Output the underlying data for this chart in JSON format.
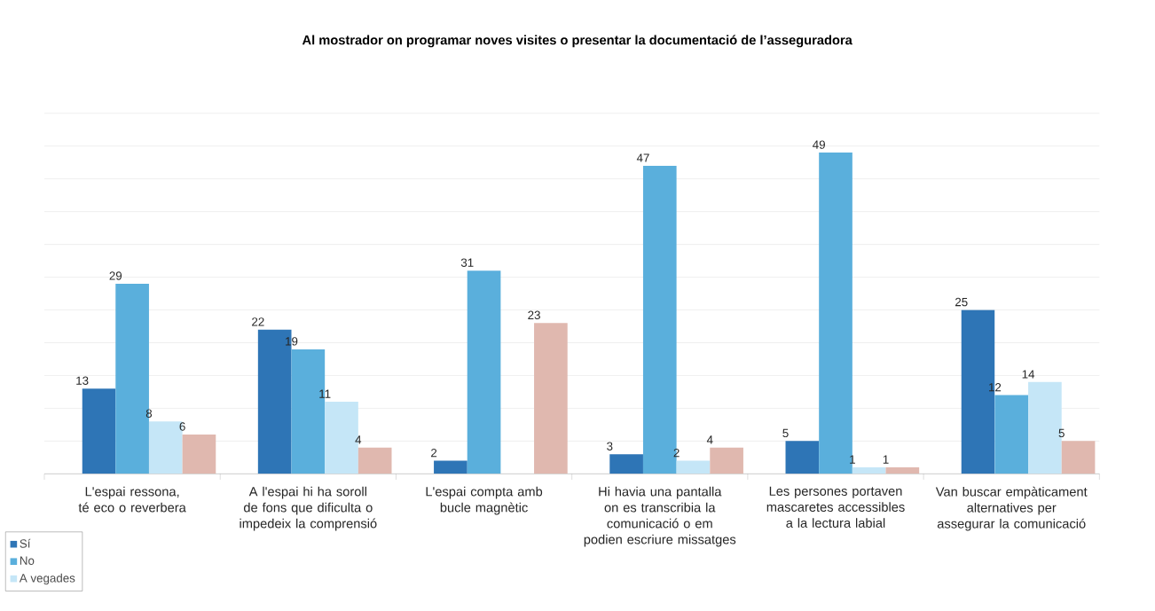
{
  "chart_data": {
    "type": "bar",
    "title": "Al mostrador on programar noves visites o presentar la documentació de l’asseguradora",
    "categories": [
      "L'espai ressona, té eco o reverbera",
      "A l'espai hi ha soroll de fons que dificulta o impedeix la comprensió",
      "L'espai compta amb bucle magnètic",
      "Hi havia una pantalla on es transcribia la comunicació o em podien escriure missatges",
      "Les persones portaven mascaretes accessibles a la lectura labial",
      "Van buscar empàticament alternatives per assegurar la comunicació"
    ],
    "series": [
      {
        "name": "Sí",
        "color": "#2e75b6",
        "values": [
          13,
          22,
          2,
          3,
          5,
          25
        ]
      },
      {
        "name": "No",
        "color": "#5aafdc",
        "values": [
          29,
          19,
          31,
          47,
          49,
          12
        ]
      },
      {
        "name": "A vegades",
        "color": "#c5e6f7",
        "values": [
          8,
          11,
          null,
          2,
          1,
          14
        ]
      },
      {
        "color": "#e0b8af",
        "values": [
          6,
          4,
          23,
          4,
          1,
          5
        ]
      }
    ],
    "tick_labels": "x",
    "grid": "y",
    "data_labels": true,
    "legend": "bottom left"
  }
}
